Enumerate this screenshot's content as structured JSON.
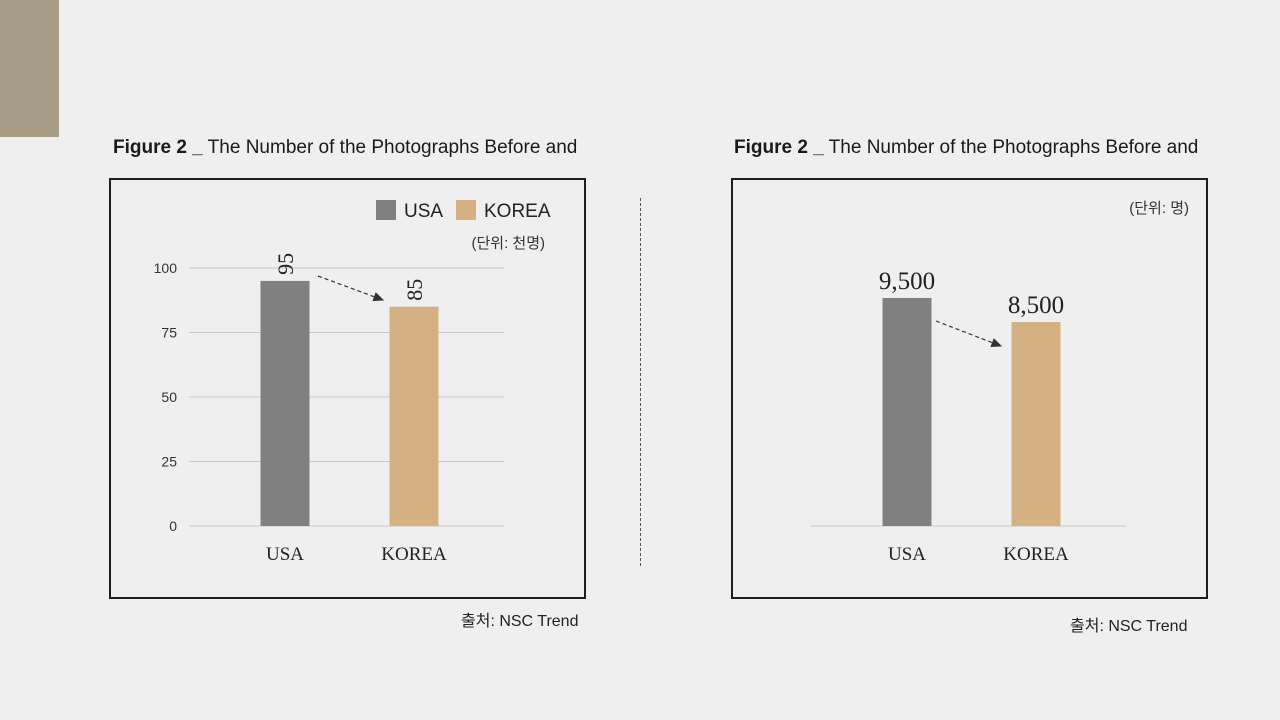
{
  "figures": [
    {
      "title_bold": "Figure 2 _",
      "title_rest": " The Number of the Photographs Before and",
      "unit": "(단위: 천명)",
      "source": "출처: NSC Trend"
    },
    {
      "title_bold": "Figure 2 _",
      "title_rest": " The Number of the Photographs Before and",
      "unit": "(단위: 명)",
      "source": "출처: NSC Trend"
    }
  ],
  "colors": {
    "usa": "#808080",
    "korea": "#d4b083",
    "accent": "#a89e87",
    "grid": "#c8c8c8"
  },
  "chart_data": [
    {
      "type": "bar",
      "categories": [
        "USA",
        "KOREA"
      ],
      "values": [
        95,
        85
      ],
      "data_labels": [
        "95",
        "85"
      ],
      "legend": [
        "USA",
        "KOREA"
      ],
      "ylim": [
        0,
        100
      ],
      "yticks": [
        "0",
        "25",
        "50",
        "75",
        "100"
      ],
      "grid": true,
      "legend_position": "top-right"
    },
    {
      "type": "bar",
      "categories": [
        "USA",
        "KOREA"
      ],
      "values": [
        9500,
        8500
      ],
      "data_labels": [
        "9,500",
        "8,500"
      ],
      "ylim": [
        0,
        11000
      ],
      "grid": false
    }
  ]
}
